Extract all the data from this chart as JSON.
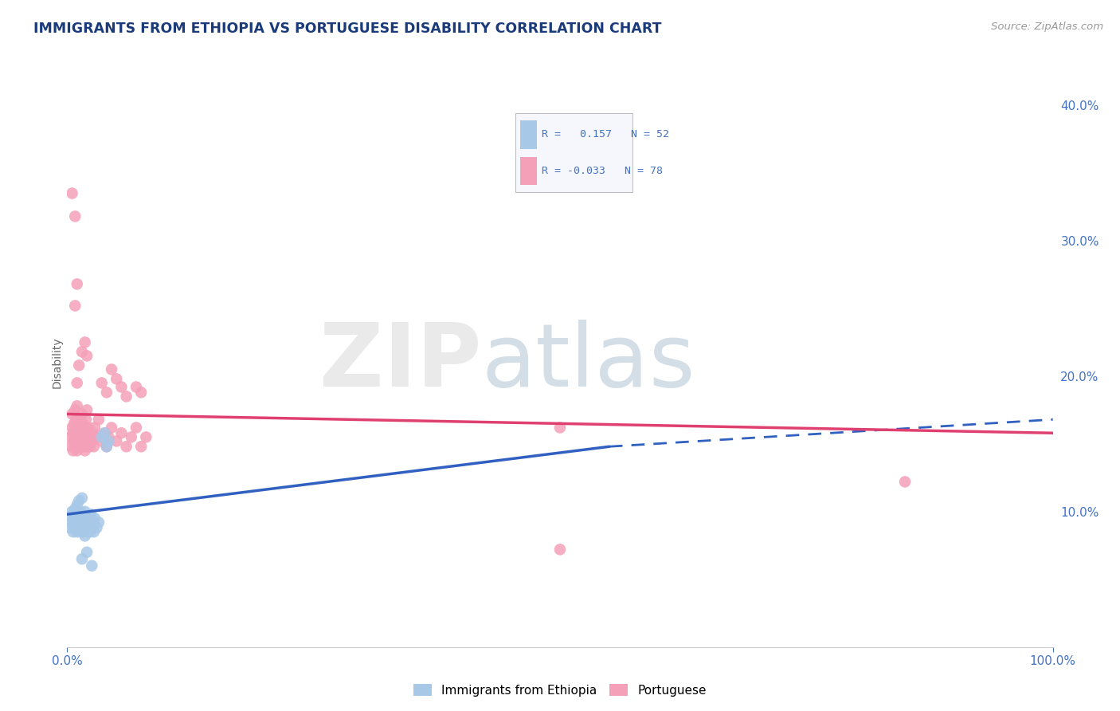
{
  "title": "IMMIGRANTS FROM ETHIOPIA VS PORTUGUESE DISABILITY CORRELATION CHART",
  "source": "Source: ZipAtlas.com",
  "ylabel": "Disability",
  "xlim": [
    0,
    1.0
  ],
  "ylim": [
    0,
    0.42
  ],
  "yticks": [
    0.1,
    0.2,
    0.3,
    0.4
  ],
  "ytick_labels": [
    "10.0%",
    "20.0%",
    "30.0%",
    "40.0%"
  ],
  "color_blue": "#A8C8E8",
  "color_pink": "#F4A0B8",
  "line_blue": "#3060C0",
  "line_pink": "#E04070",
  "bg_color": "#FFFFFF",
  "grid_color": "#C8D4E8",
  "title_color": "#1A3A7A",
  "axis_color": "#4472C4",
  "blue_line_solid": [
    [
      0.0,
      0.098
    ],
    [
      0.55,
      0.148
    ]
  ],
  "blue_line_dashed": [
    [
      0.55,
      0.148
    ],
    [
      1.0,
      0.168
    ]
  ],
  "pink_line_solid": [
    [
      0.0,
      0.172
    ],
    [
      1.0,
      0.158
    ]
  ],
  "blue_scatter": [
    [
      0.003,
      0.088
    ],
    [
      0.004,
      0.092
    ],
    [
      0.005,
      0.095
    ],
    [
      0.005,
      0.1
    ],
    [
      0.006,
      0.085
    ],
    [
      0.006,
      0.098
    ],
    [
      0.007,
      0.09
    ],
    [
      0.007,
      0.095
    ],
    [
      0.008,
      0.088
    ],
    [
      0.008,
      0.102
    ],
    [
      0.009,
      0.092
    ],
    [
      0.009,
      0.097
    ],
    [
      0.01,
      0.085
    ],
    [
      0.01,
      0.095
    ],
    [
      0.01,
      0.105
    ],
    [
      0.011,
      0.09
    ],
    [
      0.011,
      0.098
    ],
    [
      0.012,
      0.088
    ],
    [
      0.012,
      0.095
    ],
    [
      0.012,
      0.108
    ],
    [
      0.013,
      0.092
    ],
    [
      0.013,
      0.1
    ],
    [
      0.014,
      0.088
    ],
    [
      0.014,
      0.095
    ],
    [
      0.015,
      0.085
    ],
    [
      0.015,
      0.098
    ],
    [
      0.015,
      0.11
    ],
    [
      0.016,
      0.092
    ],
    [
      0.017,
      0.088
    ],
    [
      0.017,
      0.095
    ],
    [
      0.018,
      0.082
    ],
    [
      0.018,
      0.1
    ],
    [
      0.019,
      0.09
    ],
    [
      0.02,
      0.085
    ],
    [
      0.02,
      0.095
    ],
    [
      0.021,
      0.088
    ],
    [
      0.022,
      0.092
    ],
    [
      0.023,
      0.085
    ],
    [
      0.024,
      0.098
    ],
    [
      0.025,
      0.088
    ],
    [
      0.026,
      0.092
    ],
    [
      0.027,
      0.085
    ],
    [
      0.028,
      0.095
    ],
    [
      0.03,
      0.088
    ],
    [
      0.032,
      0.092
    ],
    [
      0.035,
      0.155
    ],
    [
      0.038,
      0.158
    ],
    [
      0.04,
      0.148
    ],
    [
      0.042,
      0.152
    ],
    [
      0.015,
      0.065
    ],
    [
      0.02,
      0.07
    ],
    [
      0.025,
      0.06
    ]
  ],
  "pink_scatter": [
    [
      0.003,
      0.155
    ],
    [
      0.004,
      0.148
    ],
    [
      0.005,
      0.162
    ],
    [
      0.005,
      0.172
    ],
    [
      0.006,
      0.145
    ],
    [
      0.006,
      0.158
    ],
    [
      0.007,
      0.152
    ],
    [
      0.007,
      0.165
    ],
    [
      0.008,
      0.148
    ],
    [
      0.008,
      0.175
    ],
    [
      0.009,
      0.155
    ],
    [
      0.009,
      0.168
    ],
    [
      0.01,
      0.145
    ],
    [
      0.01,
      0.158
    ],
    [
      0.01,
      0.178
    ],
    [
      0.011,
      0.152
    ],
    [
      0.011,
      0.165
    ],
    [
      0.012,
      0.148
    ],
    [
      0.012,
      0.158
    ],
    [
      0.013,
      0.155
    ],
    [
      0.013,
      0.168
    ],
    [
      0.014,
      0.152
    ],
    [
      0.014,
      0.162
    ],
    [
      0.015,
      0.148
    ],
    [
      0.015,
      0.158
    ],
    [
      0.015,
      0.172
    ],
    [
      0.016,
      0.155
    ],
    [
      0.016,
      0.165
    ],
    [
      0.017,
      0.148
    ],
    [
      0.017,
      0.158
    ],
    [
      0.018,
      0.145
    ],
    [
      0.018,
      0.162
    ],
    [
      0.019,
      0.152
    ],
    [
      0.019,
      0.168
    ],
    [
      0.02,
      0.148
    ],
    [
      0.02,
      0.175
    ],
    [
      0.021,
      0.155
    ],
    [
      0.022,
      0.162
    ],
    [
      0.023,
      0.148
    ],
    [
      0.024,
      0.155
    ],
    [
      0.025,
      0.152
    ],
    [
      0.026,
      0.158
    ],
    [
      0.027,
      0.148
    ],
    [
      0.028,
      0.162
    ],
    [
      0.03,
      0.155
    ],
    [
      0.032,
      0.168
    ],
    [
      0.035,
      0.152
    ],
    [
      0.038,
      0.158
    ],
    [
      0.04,
      0.148
    ],
    [
      0.042,
      0.155
    ],
    [
      0.045,
      0.162
    ],
    [
      0.05,
      0.152
    ],
    [
      0.055,
      0.158
    ],
    [
      0.06,
      0.148
    ],
    [
      0.065,
      0.155
    ],
    [
      0.07,
      0.162
    ],
    [
      0.075,
      0.148
    ],
    [
      0.08,
      0.155
    ],
    [
      0.01,
      0.195
    ],
    [
      0.012,
      0.208
    ],
    [
      0.015,
      0.218
    ],
    [
      0.018,
      0.225
    ],
    [
      0.02,
      0.215
    ],
    [
      0.008,
      0.252
    ],
    [
      0.01,
      0.268
    ],
    [
      0.005,
      0.335
    ],
    [
      0.008,
      0.318
    ],
    [
      0.035,
      0.195
    ],
    [
      0.04,
      0.188
    ],
    [
      0.045,
      0.205
    ],
    [
      0.05,
      0.198
    ],
    [
      0.055,
      0.192
    ],
    [
      0.06,
      0.185
    ],
    [
      0.07,
      0.192
    ],
    [
      0.075,
      0.188
    ],
    [
      0.5,
      0.162
    ],
    [
      0.85,
      0.122
    ],
    [
      0.5,
      0.072
    ]
  ]
}
